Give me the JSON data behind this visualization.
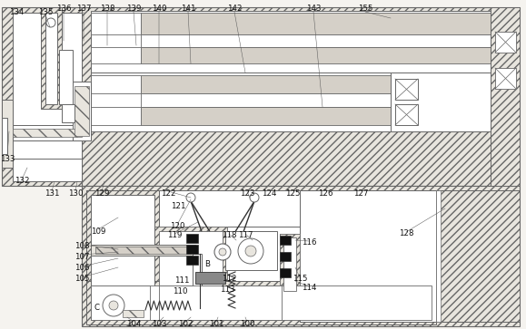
{
  "bg_color": "#f5f3ef",
  "hatch_color": "#aaaaaa",
  "line_color": "#666666",
  "dark_line": "#333333",
  "label_fontsize": 6.2,
  "figsize": [
    5.79,
    3.63
  ],
  "dpi": 100
}
